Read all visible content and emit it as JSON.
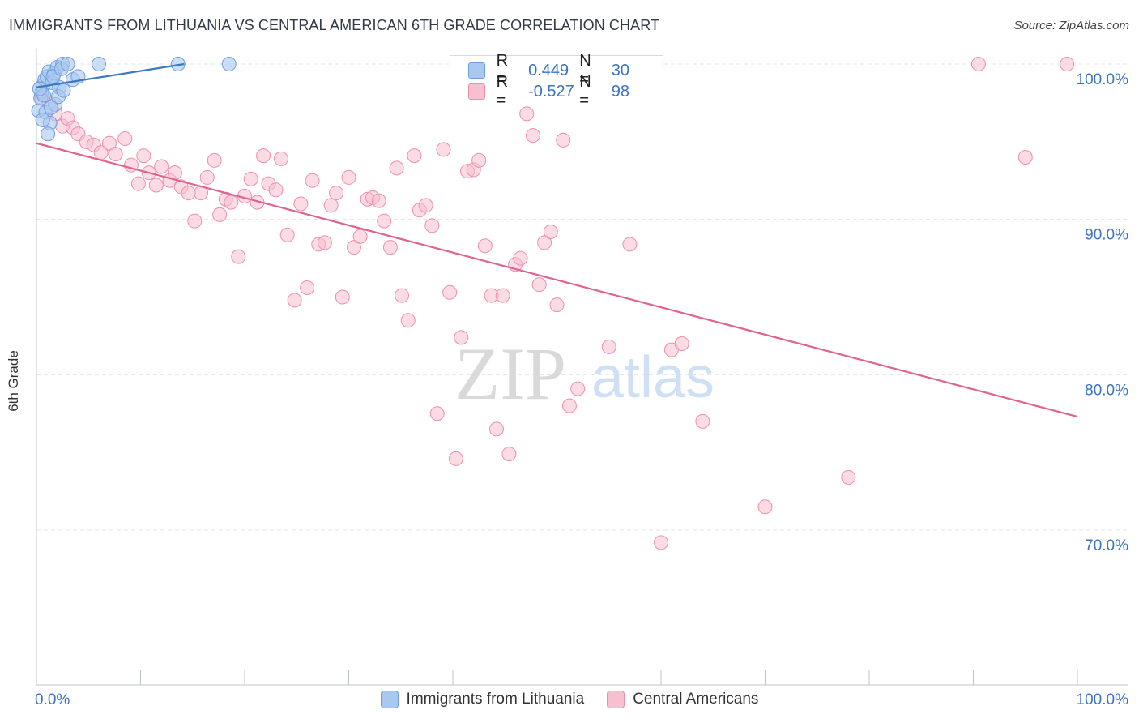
{
  "header": {
    "title": "IMMIGRANTS FROM LITHUANIA VS CENTRAL AMERICAN 6TH GRADE CORRELATION CHART",
    "source": "Source: ZipAtlas.com"
  },
  "watermark": {
    "zip": "ZIP",
    "atlas": "atlas"
  },
  "legend": {
    "r_label": "R =",
    "n_label": "N =",
    "series": [
      {
        "name": "Immigrants from Lithuania",
        "r": "0.449",
        "n": "30"
      },
      {
        "name": "Central Americans",
        "r": "-0.527",
        "n": "98"
      }
    ]
  },
  "colors": {
    "blue_fill": "#a9c8f0",
    "blue_stroke": "#6f9ee0",
    "blue_line": "#3a78c8",
    "pink_fill": "#f7bfd0",
    "pink_stroke": "#ec8fad",
    "pink_line": "#e0628e",
    "axis_text": "#3b73c4",
    "grid": "#e3e6ea"
  },
  "chart_data": {
    "type": "scatter",
    "title": "IMMIGRANTS FROM LITHUANIA VS CENTRAL AMERICAN 6TH GRADE CORRELATION CHART",
    "xlabel": "",
    "ylabel": "6th Grade",
    "xlim": [
      0,
      100
    ],
    "ylim": [
      59,
      101.5
    ],
    "x_tick_labels": [
      "0.0%",
      "100.0%"
    ],
    "y_ticks": [
      70,
      80,
      90,
      100
    ],
    "y_tick_labels": [
      "70.0%",
      "80.0%",
      "90.0%",
      "100.0%"
    ],
    "series": [
      {
        "name": "Immigrants from Lithuania",
        "r": 0.449,
        "n": 30,
        "trend": {
          "x": [
            0,
            14.2
          ],
          "y": [
            98.5,
            100.0
          ]
        },
        "points": [
          [
            0.2,
            97.0
          ],
          [
            0.5,
            98.2
          ],
          [
            0.6,
            98.6
          ],
          [
            0.8,
            99.0
          ],
          [
            1.0,
            99.2
          ],
          [
            1.2,
            99.5
          ],
          [
            1.5,
            98.8
          ],
          [
            1.7,
            99.4
          ],
          [
            2.0,
            99.8
          ],
          [
            2.2,
            98.5
          ],
          [
            2.5,
            100.0
          ],
          [
            0.4,
            97.8
          ],
          [
            0.9,
            96.9
          ],
          [
            1.3,
            96.2
          ],
          [
            1.8,
            97.4
          ],
          [
            2.1,
            97.9
          ],
          [
            1.1,
            95.5
          ],
          [
            0.7,
            98.0
          ],
          [
            1.6,
            99.2
          ],
          [
            2.4,
            99.7
          ],
          [
            3.0,
            100.0
          ],
          [
            3.5,
            99.0
          ],
          [
            4.0,
            99.2
          ],
          [
            6.0,
            100.0
          ],
          [
            13.6,
            100.0
          ],
          [
            18.5,
            100.0
          ],
          [
            0.3,
            98.4
          ],
          [
            1.4,
            97.2
          ],
          [
            2.6,
            98.3
          ],
          [
            0.6,
            96.4
          ]
        ]
      },
      {
        "name": "Central Americans",
        "r": -0.527,
        "n": 98,
        "trend": {
          "x": [
            0,
            100
          ],
          "y": [
            94.9,
            77.3
          ]
        },
        "points": [
          [
            0.5,
            97.8
          ],
          [
            1.2,
            97.5
          ],
          [
            1.8,
            96.8
          ],
          [
            2.5,
            96.0
          ],
          [
            3.0,
            96.5
          ],
          [
            3.5,
            95.9
          ],
          [
            4.0,
            95.5
          ],
          [
            4.8,
            95.0
          ],
          [
            5.5,
            94.8
          ],
          [
            6.2,
            94.3
          ],
          [
            7.0,
            94.9
          ],
          [
            7.6,
            94.2
          ],
          [
            8.5,
            95.2
          ],
          [
            9.1,
            93.5
          ],
          [
            9.8,
            92.3
          ],
          [
            10.3,
            94.1
          ],
          [
            10.8,
            93.0
          ],
          [
            11.5,
            92.2
          ],
          [
            12.0,
            93.4
          ],
          [
            12.8,
            92.5
          ],
          [
            13.3,
            93.0
          ],
          [
            13.9,
            92.1
          ],
          [
            14.6,
            91.7
          ],
          [
            15.2,
            89.9
          ],
          [
            15.8,
            91.7
          ],
          [
            16.4,
            92.7
          ],
          [
            17.1,
            93.8
          ],
          [
            17.6,
            90.3
          ],
          [
            18.2,
            91.3
          ],
          [
            18.7,
            91.1
          ],
          [
            19.4,
            87.6
          ],
          [
            20.0,
            91.5
          ],
          [
            20.6,
            92.6
          ],
          [
            21.2,
            91.1
          ],
          [
            21.8,
            94.1
          ],
          [
            22.3,
            92.3
          ],
          [
            23.0,
            91.9
          ],
          [
            23.5,
            93.9
          ],
          [
            24.1,
            89.0
          ],
          [
            24.8,
            84.8
          ],
          [
            25.4,
            91.0
          ],
          [
            26.0,
            85.6
          ],
          [
            26.5,
            92.5
          ],
          [
            27.1,
            88.4
          ],
          [
            27.7,
            88.5
          ],
          [
            28.3,
            90.9
          ],
          [
            28.8,
            91.7
          ],
          [
            29.4,
            85.0
          ],
          [
            30.0,
            92.7
          ],
          [
            30.5,
            88.2
          ],
          [
            31.1,
            88.9
          ],
          [
            31.8,
            91.3
          ],
          [
            32.3,
            91.4
          ],
          [
            32.9,
            91.2
          ],
          [
            33.4,
            89.9
          ],
          [
            34.0,
            88.2
          ],
          [
            34.6,
            93.3
          ],
          [
            35.1,
            85.1
          ],
          [
            35.7,
            83.5
          ],
          [
            36.3,
            94.1
          ],
          [
            36.8,
            90.6
          ],
          [
            37.4,
            90.9
          ],
          [
            38.0,
            89.6
          ],
          [
            38.5,
            77.5
          ],
          [
            39.1,
            94.5
          ],
          [
            39.7,
            85.3
          ],
          [
            40.3,
            74.6
          ],
          [
            40.8,
            82.4
          ],
          [
            41.4,
            93.1
          ],
          [
            42.0,
            93.2
          ],
          [
            42.5,
            93.8
          ],
          [
            43.1,
            88.3
          ],
          [
            43.7,
            85.1
          ],
          [
            44.2,
            76.5
          ],
          [
            44.8,
            85.1
          ],
          [
            45.4,
            74.9
          ],
          [
            46.0,
            87.1
          ],
          [
            46.5,
            87.5
          ],
          [
            47.1,
            96.8
          ],
          [
            47.7,
            95.4
          ],
          [
            48.3,
            85.8
          ],
          [
            48.8,
            88.5
          ],
          [
            49.4,
            89.2
          ],
          [
            50.0,
            84.5
          ],
          [
            50.6,
            95.1
          ],
          [
            51.2,
            78.0
          ],
          [
            52.0,
            79.1
          ],
          [
            55.0,
            81.8
          ],
          [
            57.0,
            88.4
          ],
          [
            60.0,
            69.2
          ],
          [
            61.0,
            81.6
          ],
          [
            62.0,
            82.0
          ],
          [
            64.0,
            77.0
          ],
          [
            70.0,
            71.5
          ],
          [
            78.0,
            73.4
          ],
          [
            90.5,
            100.0
          ],
          [
            95.0,
            94.0
          ],
          [
            99.0,
            100.0
          ]
        ]
      }
    ]
  }
}
